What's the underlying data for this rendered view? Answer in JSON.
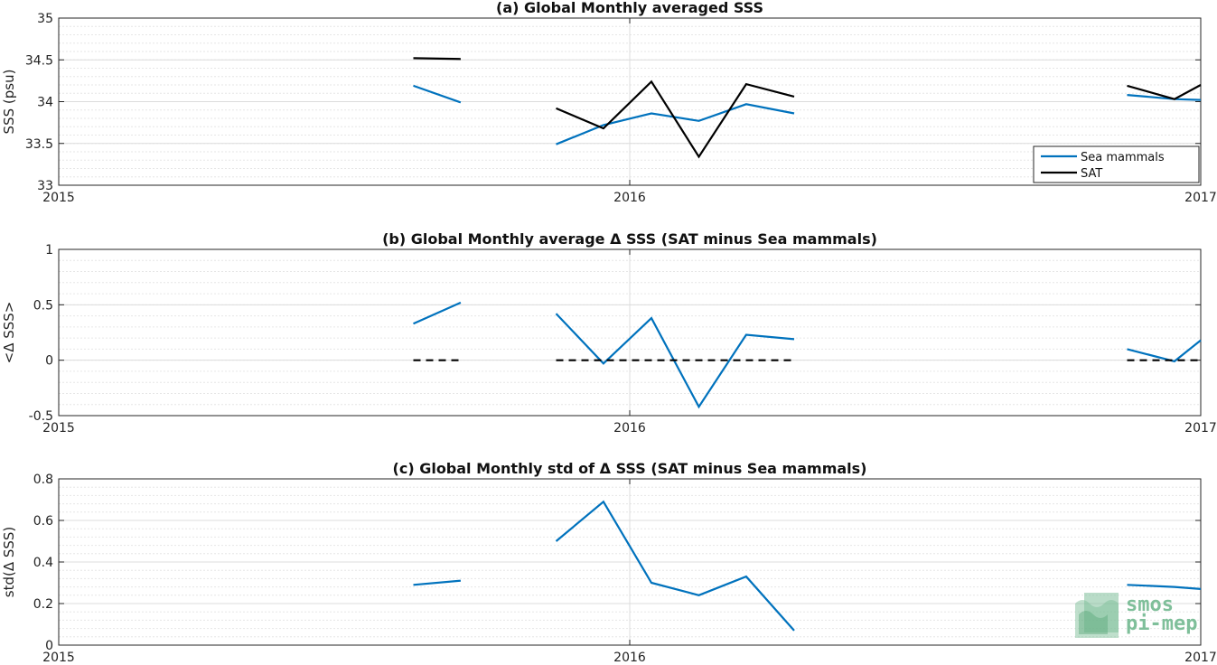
{
  "colors": {
    "sea_mammals": "#0072bd",
    "sat": "#000000",
    "grid": "#dcdcdc",
    "minor_grid": "#e6e6e6",
    "axis": "#262626",
    "logo": "#7fbf9a"
  },
  "logo": {
    "line1": "smos",
    "line2": "pi-mep"
  },
  "chart_data": [
    {
      "type": "line",
      "title": "(a) Global Monthly averaged SSS",
      "ylabel": "SSS (psu)",
      "xlabel": "",
      "xlim": [
        2015.0,
        2017.0
      ],
      "ylim": [
        33,
        35
      ],
      "xticks": [
        2015,
        2016,
        2017
      ],
      "xtick_labels": [
        "2015",
        "2016",
        "2017"
      ],
      "yticks": [
        33,
        33.5,
        34,
        34.5,
        35
      ],
      "ytick_labels": [
        "33",
        "33.5",
        "34",
        "34.5",
        "35"
      ],
      "grid": true,
      "legend": {
        "placement": "bottom-right",
        "entries": [
          "Sea mammals",
          "SAT"
        ]
      },
      "series": [
        {
          "name": "Sea mammals",
          "color_key": "sea_mammals",
          "style": "solid",
          "segments": [
            [
              [
                2015.621,
                34.19
              ],
              [
                2015.704,
                33.99
              ]
            ],
            [
              [
                2015.871,
                33.49
              ],
              [
                2015.954,
                33.72
              ],
              [
                2016.038,
                33.86
              ],
              [
                2016.121,
                33.77
              ],
              [
                2016.204,
                33.97
              ],
              [
                2016.288,
                33.86
              ]
            ],
            [
              [
                2016.871,
                34.08
              ],
              [
                2016.954,
                34.03
              ],
              [
                2017.0,
                34.02
              ]
            ]
          ]
        },
        {
          "name": "SAT",
          "color_key": "sat",
          "style": "solid",
          "segments": [
            [
              [
                2015.621,
                34.52
              ],
              [
                2015.704,
                34.51
              ]
            ],
            [
              [
                2015.871,
                33.92
              ],
              [
                2015.954,
                33.68
              ],
              [
                2016.038,
                34.24
              ],
              [
                2016.121,
                33.34
              ],
              [
                2016.204,
                34.21
              ],
              [
                2016.288,
                34.06
              ]
            ],
            [
              [
                2016.871,
                34.19
              ],
              [
                2016.954,
                34.03
              ],
              [
                2017.0,
                34.2
              ]
            ]
          ]
        }
      ]
    },
    {
      "type": "line",
      "title": "(b) Global Monthly average Δ SSS (SAT minus Sea mammals)",
      "ylabel": "<Δ SSS>",
      "xlabel": "",
      "xlim": [
        2015.0,
        2017.0
      ],
      "ylim": [
        -0.5,
        1
      ],
      "xticks": [
        2015,
        2016,
        2017
      ],
      "xtick_labels": [
        "2015",
        "2016",
        "2017"
      ],
      "yticks": [
        -0.5,
        0,
        0.5,
        1
      ],
      "ytick_labels": [
        "-0.5",
        "0",
        "0.5",
        "1"
      ],
      "grid": true,
      "series": [
        {
          "name": "",
          "color_key": "sea_mammals",
          "style": "solid",
          "segments": [
            [
              [
                2015.621,
                0.33
              ],
              [
                2015.704,
                0.52
              ]
            ],
            [
              [
                2015.871,
                0.42
              ],
              [
                2015.954,
                -0.03
              ],
              [
                2016.038,
                0.38
              ],
              [
                2016.121,
                -0.42
              ],
              [
                2016.204,
                0.23
              ],
              [
                2016.288,
                0.19
              ]
            ],
            [
              [
                2016.871,
                0.1
              ],
              [
                2016.954,
                -0.01
              ],
              [
                2017.0,
                0.18
              ]
            ]
          ]
        },
        {
          "name": "",
          "color_key": "sat",
          "style": "dashed",
          "segments": [
            [
              [
                2015.621,
                0
              ],
              [
                2015.704,
                0
              ]
            ],
            [
              [
                2015.871,
                0
              ],
              [
                2016.288,
                0
              ]
            ],
            [
              [
                2016.871,
                0
              ],
              [
                2017.0,
                0
              ]
            ]
          ]
        }
      ]
    },
    {
      "type": "line",
      "title": "(c) Global Monthly std of Δ SSS (SAT minus Sea mammals)",
      "ylabel": "std(Δ SSS)",
      "xlabel": "",
      "xlim": [
        2015.0,
        2017.0
      ],
      "ylim": [
        0,
        0.8
      ],
      "xticks": [
        2015,
        2016,
        2017
      ],
      "xtick_labels": [
        "2015",
        "2016",
        "2017"
      ],
      "yticks": [
        0,
        0.2,
        0.4,
        0.6,
        0.8
      ],
      "ytick_labels": [
        "0",
        "0.2",
        "0.4",
        "0.6",
        "0.8"
      ],
      "grid": true,
      "series": [
        {
          "name": "",
          "color_key": "sea_mammals",
          "style": "solid",
          "segments": [
            [
              [
                2015.621,
                0.29
              ],
              [
                2015.704,
                0.31
              ]
            ],
            [
              [
                2015.871,
                0.5
              ],
              [
                2015.954,
                0.69
              ],
              [
                2016.038,
                0.3
              ],
              [
                2016.121,
                0.24
              ],
              [
                2016.204,
                0.33
              ],
              [
                2016.288,
                0.07
              ]
            ],
            [
              [
                2016.871,
                0.29
              ],
              [
                2016.954,
                0.28
              ],
              [
                2017.0,
                0.27
              ]
            ]
          ]
        }
      ]
    }
  ]
}
